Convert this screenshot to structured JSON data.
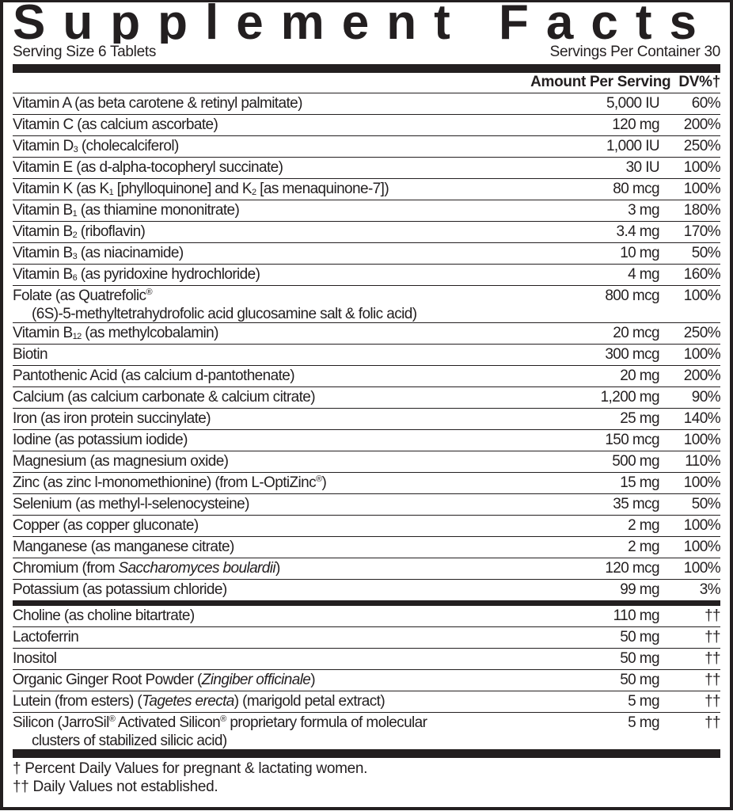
{
  "title": "Supplement Facts",
  "serving_size": "Serving Size 6 Tablets",
  "servings_per_container": "Servings Per Container 30",
  "header": {
    "amount": "Amount Per Serving",
    "dv": "DV%†"
  },
  "rows": [
    {
      "name": [
        {
          "t": "Vitamin A (as beta carotene & retinyl palmitate)"
        }
      ],
      "amount": "5,000 IU",
      "dv": "60%"
    },
    {
      "name": [
        {
          "t": "Vitamin C (as calcium ascorbate)"
        }
      ],
      "amount": "120 mg",
      "dv": "200%"
    },
    {
      "name": [
        {
          "t": "Vitamin D"
        },
        {
          "t": "3",
          "s": "sub"
        },
        {
          "t": " (cholecalciferol)"
        }
      ],
      "amount": "1,000 IU",
      "dv": "250%"
    },
    {
      "name": [
        {
          "t": "Vitamin E (as d-alpha-tocopheryl succinate)"
        }
      ],
      "amount": "30 IU",
      "dv": "100%"
    },
    {
      "name": [
        {
          "t": "Vitamin K (as K"
        },
        {
          "t": "1",
          "s": "sub"
        },
        {
          "t": " [phylloquinone] and K"
        },
        {
          "t": "2",
          "s": "sub"
        },
        {
          "t": " [as menaquinone-7])"
        }
      ],
      "amount": "80 mcg",
      "dv": "100%"
    },
    {
      "name": [
        {
          "t": "Vitamin B"
        },
        {
          "t": "1",
          "s": "sub"
        },
        {
          "t": " (as thiamine mononitrate)"
        }
      ],
      "amount": "3 mg",
      "dv": "180%"
    },
    {
      "name": [
        {
          "t": "Vitamin B"
        },
        {
          "t": "2",
          "s": "sub"
        },
        {
          "t": " (riboflavin)"
        }
      ],
      "amount": "3.4 mg",
      "dv": "170%"
    },
    {
      "name": [
        {
          "t": "Vitamin B"
        },
        {
          "t": "3",
          "s": "sub"
        },
        {
          "t": " (as niacinamide)"
        }
      ],
      "amount": "10 mg",
      "dv": "50%"
    },
    {
      "name": [
        {
          "t": "Vitamin B"
        },
        {
          "t": "6",
          "s": "sub"
        },
        {
          "t": " (as pyridoxine hydrochloride)"
        }
      ],
      "amount": "4 mg",
      "dv": "160%"
    },
    {
      "name": [
        {
          "t": "Folate (as Quatrefolic"
        },
        {
          "t": "®",
          "s": "sup"
        },
        {
          "t": "(6S)-5-methyltetrahydrofolic acid glucosamine salt & folic acid)",
          "s": "l2"
        }
      ],
      "amount": "800 mcg",
      "dv": "100%"
    },
    {
      "name": [
        {
          "t": "Vitamin B"
        },
        {
          "t": "12",
          "s": "sub"
        },
        {
          "t": " (as methylcobalamin)"
        }
      ],
      "amount": "20 mcg",
      "dv": "250%"
    },
    {
      "name": [
        {
          "t": "Biotin"
        }
      ],
      "amount": "300 mcg",
      "dv": "100%"
    },
    {
      "name": [
        {
          "t": "Pantothenic Acid (as calcium d-pantothenate)"
        }
      ],
      "amount": "20 mg",
      "dv": "200%"
    },
    {
      "name": [
        {
          "t": "Calcium (as calcium carbonate & calcium citrate)"
        }
      ],
      "amount": "1,200 mg",
      "dv": "90%"
    },
    {
      "name": [
        {
          "t": "Iron (as iron protein succinylate)"
        }
      ],
      "amount": "25 mg",
      "dv": "140%"
    },
    {
      "name": [
        {
          "t": "Iodine (as potassium iodide)"
        }
      ],
      "amount": "150 mcg",
      "dv": "100%"
    },
    {
      "name": [
        {
          "t": "Magnesium (as magnesium oxide)"
        }
      ],
      "amount": "500 mg",
      "dv": "110%"
    },
    {
      "name": [
        {
          "t": "Zinc (as zinc l-monomethionine) (from L-OptiZinc"
        },
        {
          "t": "®",
          "s": "sup"
        },
        {
          "t": ")"
        }
      ],
      "amount": "15 mg",
      "dv": "100%"
    },
    {
      "name": [
        {
          "t": "Selenium (as methyl-l-selenocysteine)"
        }
      ],
      "amount": "35 mcg",
      "dv": "50%"
    },
    {
      "name": [
        {
          "t": "Copper (as copper gluconate)"
        }
      ],
      "amount": "2 mg",
      "dv": "100%"
    },
    {
      "name": [
        {
          "t": "Manganese (as manganese citrate)"
        }
      ],
      "amount": "2 mg",
      "dv": "100%"
    },
    {
      "name": [
        {
          "t": "Chromium (from "
        },
        {
          "t": "Saccharomyces boulardii",
          "s": "i"
        },
        {
          "t": ")"
        }
      ],
      "amount": "120 mcg",
      "dv": "100%"
    },
    {
      "name": [
        {
          "t": "Potassium (as potassium chloride)"
        }
      ],
      "amount": "99 mg",
      "dv": "3%"
    }
  ],
  "rows2": [
    {
      "name": [
        {
          "t": "Choline (as choline bitartrate)"
        }
      ],
      "amount": "110 mg",
      "dv": "††"
    },
    {
      "name": [
        {
          "t": "Lactoferrin"
        }
      ],
      "amount": "50 mg",
      "dv": "††"
    },
    {
      "name": [
        {
          "t": "Inositol"
        }
      ],
      "amount": "50 mg",
      "dv": "††"
    },
    {
      "name": [
        {
          "t": "Organic Ginger Root Powder ("
        },
        {
          "t": "Zingiber officinale",
          "s": "i"
        },
        {
          "t": ")"
        }
      ],
      "amount": "50 mg",
      "dv": "††"
    },
    {
      "name": [
        {
          "t": "Lutein (from esters) ("
        },
        {
          "t": "Tagetes erecta",
          "s": "i"
        },
        {
          "t": ") (marigold petal extract)"
        }
      ],
      "amount": "5 mg",
      "dv": "††"
    },
    {
      "name": [
        {
          "t": "Silicon (JarroSil"
        },
        {
          "t": "®",
          "s": "sup"
        },
        {
          "t": " Activated Silicon"
        },
        {
          "t": "®",
          "s": "sup"
        },
        {
          "t": " proprietary formula of molecular"
        },
        {
          "t": "clusters of stabilized silicic acid)",
          "s": "l2"
        }
      ],
      "amount": "5 mg",
      "dv": "††"
    }
  ],
  "footnotes": [
    "† Percent Daily Values for pregnant & lactating women.",
    "†† Daily Values not established."
  ]
}
